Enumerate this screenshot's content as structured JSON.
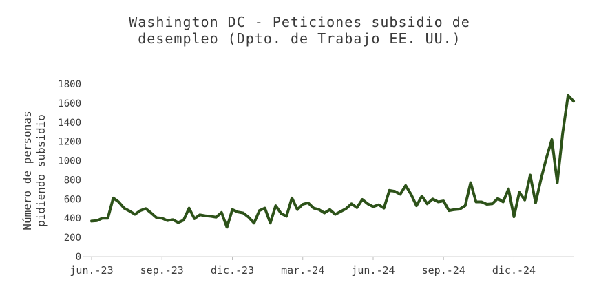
{
  "chart_data": {
    "type": "line",
    "title_line1": "Washington DC - Peticiones subsidio de",
    "title_line2": "desempleo (Dpto. de Trabajo EE. UU.)",
    "ylabel_line1": "Número de personas",
    "ylabel_line2": "pidiendo subsidio",
    "xlabel": "",
    "ylim": [
      0,
      1800
    ],
    "yticks": [
      0,
      200,
      400,
      600,
      800,
      1000,
      1200,
      1400,
      1600,
      1800
    ],
    "xticks": [
      {
        "label": "jun.-23",
        "week": 0
      },
      {
        "label": "sep.-23",
        "week": 13
      },
      {
        "label": "dic.-23",
        "week": 26
      },
      {
        "label": "mar.-24",
        "week": 39
      },
      {
        "label": "jun.-24",
        "week": 52
      },
      {
        "label": "sep.-24",
        "week": 65
      },
      {
        "label": "dic.-24",
        "week": 78
      }
    ],
    "grid": false,
    "line_color": "#2d5219",
    "series": [
      {
        "values": [
          370,
          375,
          400,
          400,
          610,
          570,
          505,
          475,
          440,
          480,
          500,
          455,
          405,
          400,
          375,
          385,
          355,
          380,
          505,
          395,
          435,
          425,
          420,
          410,
          460,
          305,
          490,
          465,
          455,
          410,
          350,
          480,
          505,
          350,
          530,
          450,
          420,
          610,
          490,
          545,
          560,
          505,
          490,
          455,
          490,
          440,
          470,
          500,
          550,
          510,
          595,
          550,
          520,
          540,
          505,
          690,
          680,
          650,
          740,
          650,
          530,
          630,
          550,
          600,
          570,
          580,
          480,
          490,
          495,
          530,
          770,
          570,
          570,
          545,
          550,
          605,
          570,
          705,
          415,
          670,
          590,
          850,
          560,
          810,
          1030,
          1220,
          770,
          1290,
          1680,
          1620
        ]
      }
    ]
  }
}
